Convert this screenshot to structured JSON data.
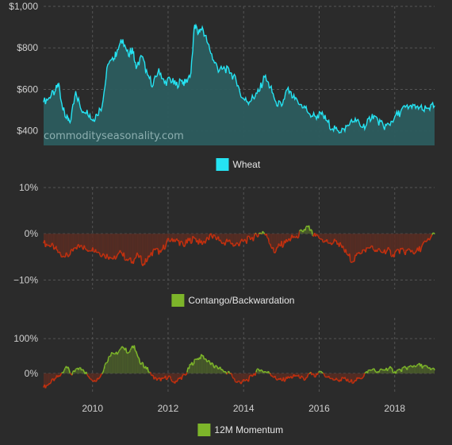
{
  "watermark": "commodityseasonality.com",
  "colors": {
    "background": "#2b2b2b",
    "grid": "#555555",
    "wheat_line": "#25e3f2",
    "wheat_fill": "#2c5c5e",
    "positive": "#7db52a",
    "positive_fill": "#4b5e2a",
    "negative": "#c2300f",
    "negative_fill": "#5a2c22"
  },
  "chart_data": [
    {
      "type": "area",
      "legend": [
        "Wheat"
      ],
      "y_ticks": [
        "$400",
        "$600",
        "$800",
        "$1,000"
      ],
      "ylim": [
        330,
        1000
      ],
      "xlim": [
        2008.6,
        2018.95
      ],
      "grid": true,
      "legend_position": "bottom-center",
      "series": [
        {
          "name": "Wheat",
          "x": [
            2008.6,
            2008.75,
            2008.9,
            2009.0,
            2009.1,
            2009.2,
            2009.3,
            2009.45,
            2009.6,
            2009.75,
            2009.9,
            2010.0,
            2010.15,
            2010.3,
            2010.45,
            2010.55,
            2010.7,
            2010.85,
            2010.95,
            2011.05,
            2011.2,
            2011.35,
            2011.5,
            2011.65,
            2011.8,
            2011.95,
            2012.1,
            2012.25,
            2012.35,
            2012.5,
            2012.6,
            2012.7,
            2012.8,
            2012.95,
            2013.1,
            2013.25,
            2013.4,
            2013.55,
            2013.7,
            2013.85,
            2014.0,
            2014.15,
            2014.3,
            2014.45,
            2014.6,
            2014.75,
            2014.9,
            2015.05,
            2015.2,
            2015.35,
            2015.5,
            2015.65,
            2015.8,
            2015.95,
            2016.1,
            2016.25,
            2016.4,
            2016.55,
            2016.7,
            2016.85,
            2017.0,
            2017.15,
            2017.3,
            2017.45,
            2017.6,
            2017.75,
            2017.9,
            2018.05,
            2018.2,
            2018.35,
            2018.5,
            2018.65,
            2018.8,
            2018.95
          ],
          "values": [
            540,
            560,
            590,
            630,
            510,
            460,
            440,
            590,
            500,
            500,
            450,
            480,
            520,
            720,
            740,
            790,
            840,
            760,
            800,
            700,
            760,
            670,
            620,
            700,
            630,
            650,
            620,
            640,
            630,
            680,
            910,
            870,
            900,
            820,
            740,
            690,
            700,
            680,
            640,
            560,
            540,
            560,
            590,
            660,
            610,
            540,
            520,
            600,
            560,
            530,
            520,
            480,
            470,
            480,
            450,
            410,
            400,
            410,
            430,
            460,
            420,
            430,
            480,
            450,
            420,
            430,
            470,
            490,
            520,
            510,
            520,
            500,
            510,
            520
          ]
        }
      ]
    },
    {
      "type": "area",
      "legend": [
        "Contango/Backwardation"
      ],
      "y_ticks": [
        "10%",
        "0%",
        "−10%"
      ],
      "ylim": [
        -12,
        10
      ],
      "xlim": [
        2008.6,
        2018.95
      ],
      "grid": true,
      "legend_position": "bottom-center",
      "series": [
        {
          "name": "Contango/Backwardation",
          "x": [
            2008.6,
            2008.75,
            2008.9,
            2009.0,
            2009.15,
            2009.3,
            2009.45,
            2009.6,
            2009.75,
            2009.9,
            2010.05,
            2010.2,
            2010.35,
            2010.5,
            2010.65,
            2010.8,
            2010.95,
            2011.1,
            2011.25,
            2011.4,
            2011.55,
            2011.7,
            2011.85,
            2012.0,
            2012.15,
            2012.3,
            2012.45,
            2012.6,
            2012.75,
            2012.9,
            2013.05,
            2013.2,
            2013.35,
            2013.5,
            2013.65,
            2013.8,
            2013.95,
            2014.1,
            2014.25,
            2014.4,
            2014.55,
            2014.7,
            2014.85,
            2015.0,
            2015.15,
            2015.3,
            2015.45,
            2015.6,
            2015.75,
            2015.9,
            2016.05,
            2016.2,
            2016.35,
            2016.5,
            2016.65,
            2016.8,
            2016.95,
            2017.1,
            2017.25,
            2017.4,
            2017.55,
            2017.7,
            2017.85,
            2018.0,
            2018.15,
            2018.3,
            2018.45,
            2018.6,
            2018.75,
            2018.95
          ],
          "values": [
            -2,
            -2.5,
            -3,
            -4,
            -5,
            -4.5,
            -3,
            -2.5,
            -3.5,
            -3,
            -4,
            -4.5,
            -5,
            -5.5,
            -4,
            -5.5,
            -6,
            -4.5,
            -6.5,
            -5,
            -3.5,
            -4,
            -2,
            -1,
            -1.5,
            -2.5,
            -1.5,
            -1,
            -2,
            -1.5,
            -0.5,
            -1,
            -2,
            -1.5,
            -2.5,
            -2,
            -1.5,
            -1,
            -0.5,
            0.5,
            -1,
            -4,
            -2.5,
            -2,
            -1,
            -0.5,
            0.5,
            1.5,
            -0.5,
            -1,
            -1.5,
            -2,
            -1.5,
            -3,
            -4.5,
            -6,
            -4,
            -3.5,
            -3,
            -3.5,
            -4,
            -3.5,
            -4.5,
            -3.5,
            -4,
            -3.5,
            -4,
            -3,
            -1.5,
            0
          ]
        }
      ]
    },
    {
      "type": "area",
      "legend": [
        "12M Momentum"
      ],
      "y_ticks": [
        "100%",
        "0%"
      ],
      "ylim": [
        -60,
        160
      ],
      "xlim": [
        2008.6,
        2018.95
      ],
      "x_ticks": [
        "2010",
        "2012",
        "2014",
        "2016",
        "2018"
      ],
      "grid": true,
      "legend_position": "bottom-center",
      "series": [
        {
          "name": "12M Momentum",
          "x": [
            2008.6,
            2008.75,
            2008.9,
            2009.05,
            2009.2,
            2009.35,
            2009.5,
            2009.65,
            2009.8,
            2009.95,
            2010.1,
            2010.25,
            2010.4,
            2010.55,
            2010.7,
            2010.85,
            2011.0,
            2011.15,
            2011.3,
            2011.45,
            2011.6,
            2011.75,
            2011.9,
            2012.05,
            2012.2,
            2012.35,
            2012.5,
            2012.65,
            2012.8,
            2012.95,
            2013.1,
            2013.25,
            2013.4,
            2013.55,
            2013.7,
            2013.85,
            2014.0,
            2014.15,
            2014.3,
            2014.45,
            2014.6,
            2014.75,
            2014.9,
            2015.05,
            2015.2,
            2015.35,
            2015.5,
            2015.65,
            2015.8,
            2015.95,
            2016.1,
            2016.25,
            2016.4,
            2016.55,
            2016.7,
            2016.85,
            2017.0,
            2017.15,
            2017.3,
            2017.45,
            2017.6,
            2017.75,
            2017.9,
            2018.05,
            2018.2,
            2018.35,
            2018.5,
            2018.65,
            2018.8,
            2018.95
          ],
          "values": [
            -40,
            -30,
            -15,
            -5,
            20,
            -5,
            15,
            10,
            -10,
            -20,
            -10,
            30,
            60,
            55,
            75,
            60,
            80,
            30,
            20,
            -5,
            -20,
            -15,
            -10,
            -25,
            -15,
            -5,
            25,
            40,
            50,
            35,
            20,
            15,
            5,
            0,
            -25,
            -25,
            -20,
            -5,
            10,
            5,
            0,
            -15,
            -20,
            -15,
            -10,
            -5,
            -20,
            0,
            -10,
            5,
            -10,
            -15,
            -20,
            -15,
            -25,
            -20,
            -15,
            5,
            10,
            5,
            10,
            15,
            5,
            10,
            15,
            20,
            25,
            20,
            15,
            10
          ]
        }
      ]
    }
  ]
}
